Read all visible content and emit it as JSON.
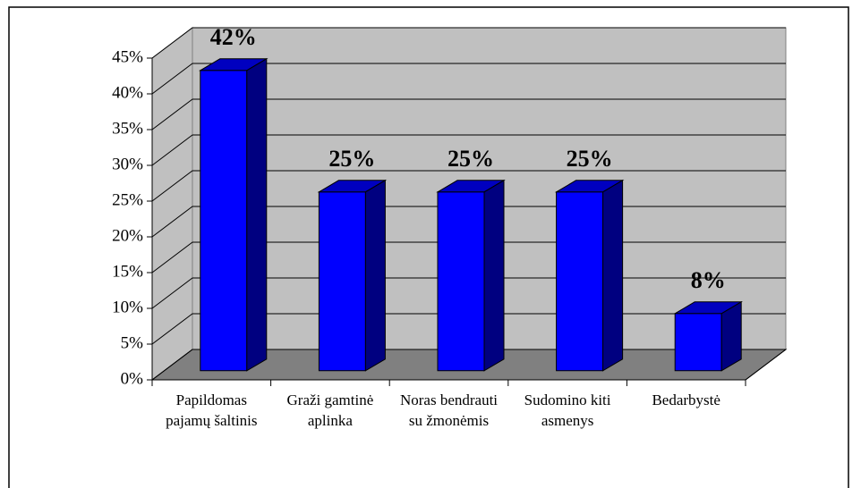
{
  "chart_data": {
    "type": "bar3d",
    "categories": [
      "Papildomas pajamų šaltinis",
      "Graži gamtinė aplinka",
      "Noras bendrauti su žmonėmis",
      "Sudomino kiti asmenys",
      "Bedarbystė"
    ],
    "values": [
      42,
      25,
      25,
      25,
      8
    ],
    "value_labels": [
      "42%",
      "25%",
      "25%",
      "25%",
      "8%"
    ],
    "color": "#0000ff",
    "ylim": [
      0,
      45
    ],
    "yticks": [
      {
        "value": 0,
        "label": "0%"
      },
      {
        "value": 5,
        "label": "5%"
      },
      {
        "value": 10,
        "label": "10%"
      },
      {
        "value": 15,
        "label": "15%"
      },
      {
        "value": 20,
        "label": "20%"
      },
      {
        "value": 25,
        "label": "25%"
      },
      {
        "value": 30,
        "label": "30%"
      },
      {
        "value": 35,
        "label": "35%"
      },
      {
        "value": 40,
        "label": "40%"
      },
      {
        "value": 45,
        "label": "45%"
      }
    ],
    "grid": true
  }
}
